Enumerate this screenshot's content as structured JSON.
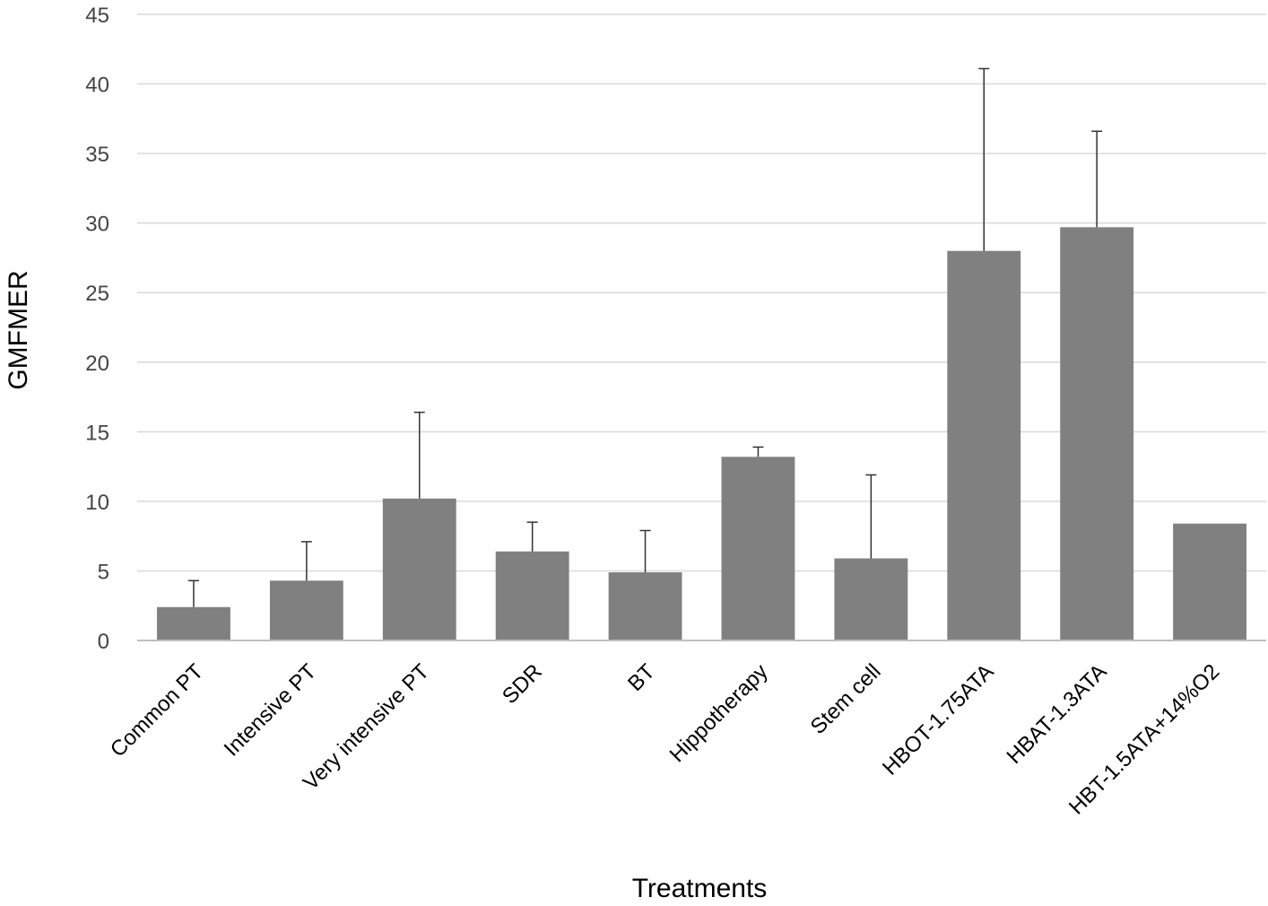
{
  "chart_data": {
    "type": "bar",
    "title": "",
    "xlabel": "Treatments",
    "ylabel": "GMFMER",
    "ylim": [
      0,
      45
    ],
    "yticks": [
      0,
      5,
      10,
      15,
      20,
      25,
      30,
      35,
      40,
      45
    ],
    "grid": true,
    "categories": [
      "Common PT",
      "Intensive PT",
      "Very intensive PT",
      "SDR",
      "BT",
      "Hippotherapy",
      "Stem cell",
      "HBOT-1.75ATA",
      "HBAT-1.3ATA",
      "HBT-1.5ATA+14%O2"
    ],
    "values": [
      2.4,
      4.3,
      10.2,
      6.4,
      4.9,
      13.2,
      5.9,
      28.0,
      29.7,
      8.4
    ],
    "error_upper": [
      1.9,
      2.8,
      6.2,
      2.1,
      3.0,
      0.7,
      6.0,
      13.1,
      6.9,
      null
    ],
    "colors": {
      "bar": "#808080",
      "errorbar": "#333333",
      "grid": "#d9d9d9",
      "axis": "#bfbfbf"
    }
  }
}
